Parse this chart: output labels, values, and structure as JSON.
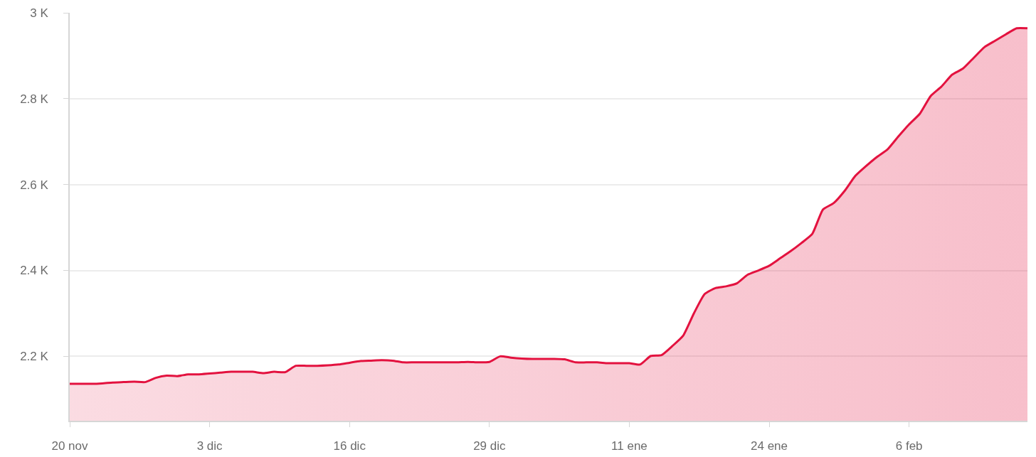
{
  "chart_data": {
    "type": "area",
    "categories": [
      "20 nov",
      null,
      null,
      null,
      null,
      null,
      null,
      null,
      null,
      null,
      null,
      null,
      null,
      "3 dic",
      null,
      null,
      null,
      null,
      null,
      null,
      null,
      null,
      null,
      null,
      null,
      null,
      "16 dic",
      null,
      null,
      null,
      null,
      null,
      null,
      null,
      null,
      null,
      null,
      null,
      null,
      "29 dic",
      null,
      null,
      null,
      null,
      null,
      null,
      null,
      null,
      null,
      null,
      null,
      null,
      "11 ene",
      null,
      null,
      null,
      null,
      null,
      null,
      null,
      null,
      null,
      null,
      null,
      null,
      "24 ene",
      null,
      null,
      null,
      null,
      null,
      null,
      null,
      null,
      null,
      null,
      null,
      null,
      "6 feb",
      null,
      null,
      null,
      null,
      null,
      null,
      null,
      null,
      null,
      null,
      null
    ],
    "series": [
      {
        "color": "#e3123f",
        "values": [
          2136,
          2136,
          2136,
          2137,
          2139,
          2140,
          2141,
          2140,
          2150,
          2155,
          2154,
          2158,
          2158,
          2160,
          2162,
          2164,
          2164,
          2164,
          2161,
          2164,
          2163,
          2178,
          2178,
          2178,
          2179,
          2181,
          2185,
          2189,
          2190,
          2191,
          2190,
          2186,
          2186,
          2186,
          2186,
          2186,
          2186,
          2187,
          2186,
          2187,
          2200,
          2197,
          2195,
          2194,
          2194,
          2194,
          2193,
          2186,
          2186,
          2186,
          2184,
          2184,
          2184,
          2181,
          2201,
          2203,
          2224,
          2248,
          2300,
          2345,
          2359,
          2363,
          2370,
          2390,
          2400,
          2411,
          2428,
          2445,
          2464,
          2485,
          2542,
          2557,
          2585,
          2620,
          2643,
          2664,
          2682,
          2712,
          2740,
          2765,
          2806,
          2828,
          2856,
          2870,
          2895,
          2920,
          2935,
          2950,
          2964,
          2964
        ]
      }
    ],
    "ylim": [
      2050,
      3000
    ],
    "yticks": [
      {
        "value": 2200,
        "label": "2.2 K"
      },
      {
        "value": 2400,
        "label": "2.4 K"
      },
      {
        "value": 2600,
        "label": "2.6 K"
      },
      {
        "value": 2800,
        "label": "2.8 K"
      },
      {
        "value": 3000,
        "label": "3 K"
      }
    ],
    "grid": "y",
    "line_style": "solid"
  }
}
